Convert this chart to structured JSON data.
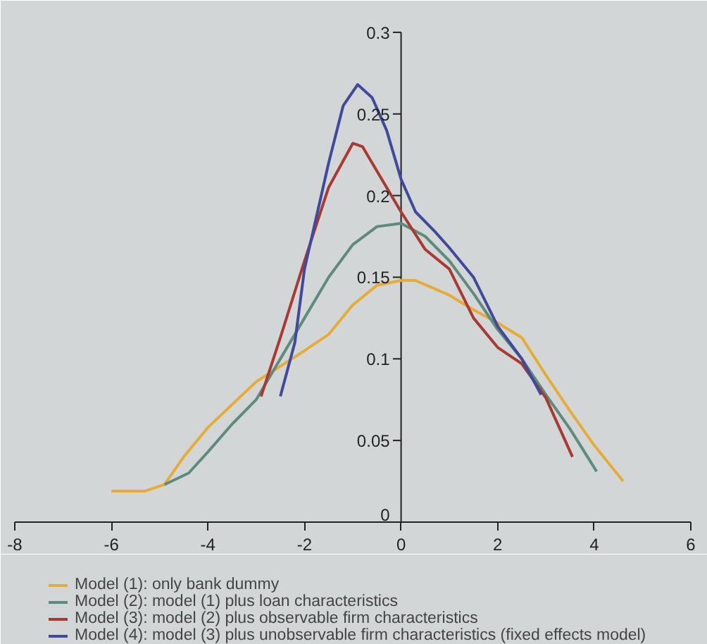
{
  "chart_data": {
    "type": "line",
    "xlim": [
      -8,
      6
    ],
    "ylim": [
      0,
      0.3
    ],
    "xticks": [
      -8,
      -6,
      -4,
      -2,
      0,
      2,
      4,
      6
    ],
    "yticks": [
      0,
      0.05,
      0.1,
      0.15,
      0.2,
      0.25,
      0.3
    ],
    "grid": false,
    "legend": "bottom",
    "marker": "none",
    "line_style": "solid",
    "series": [
      {
        "name": "Model (1): only bank dummy",
        "color": "#e6ac3a",
        "x": [
          -6,
          -5.3,
          -4.9,
          -4.5,
          -4,
          -3,
          -2,
          -1.5,
          -1,
          -0.5,
          0,
          0.3,
          1,
          1.5,
          2,
          2.5,
          3,
          3.5,
          4,
          4.6
        ],
        "values": [
          0.019,
          0.019,
          0.023,
          0.04,
          0.058,
          0.086,
          0.105,
          0.115,
          0.133,
          0.145,
          0.148,
          0.148,
          0.139,
          0.13,
          0.122,
          0.113,
          0.09,
          0.068,
          0.047,
          0.025
        ]
      },
      {
        "name": "Model (2): model (1) plus loan characteristics",
        "color": "#5e8c7c",
        "x": [
          -4.9,
          -4.4,
          -4,
          -3.5,
          -3,
          -2.5,
          -2,
          -1.5,
          -1,
          -0.5,
          0,
          0.5,
          1,
          1.5,
          2,
          2.5,
          3,
          3.5,
          4.05
        ],
        "values": [
          0.023,
          0.03,
          0.043,
          0.06,
          0.075,
          0.1,
          0.125,
          0.15,
          0.17,
          0.181,
          0.183,
          0.175,
          0.16,
          0.14,
          0.118,
          0.1,
          0.078,
          0.057,
          0.031
        ]
      },
      {
        "name": "Model (3): model (2) plus observable firm characteristics",
        "color": "#a83a32",
        "x": [
          -2.9,
          -2.5,
          -2,
          -1.5,
          -1,
          -0.8,
          -0.5,
          0,
          0.5,
          1,
          1.5,
          2,
          2.5,
          3,
          3.55
        ],
        "values": [
          0.077,
          0.113,
          0.16,
          0.205,
          0.232,
          0.23,
          0.215,
          0.19,
          0.167,
          0.155,
          0.125,
          0.107,
          0.097,
          0.076,
          0.04
        ]
      },
      {
        "name": "Model (4): model (3) plus unobservable firm characteristics (fixed effects model)",
        "color": "#3f4a9c",
        "x": [
          -2.5,
          -2.2,
          -2,
          -1.5,
          -1.2,
          -0.9,
          -0.6,
          -0.3,
          0,
          0.3,
          0.7,
          1,
          1.5,
          2,
          2.5,
          2.9
        ],
        "values": [
          0.077,
          0.11,
          0.155,
          0.22,
          0.255,
          0.268,
          0.26,
          0.24,
          0.21,
          0.19,
          0.178,
          0.168,
          0.15,
          0.12,
          0.1,
          0.078
        ]
      }
    ]
  }
}
